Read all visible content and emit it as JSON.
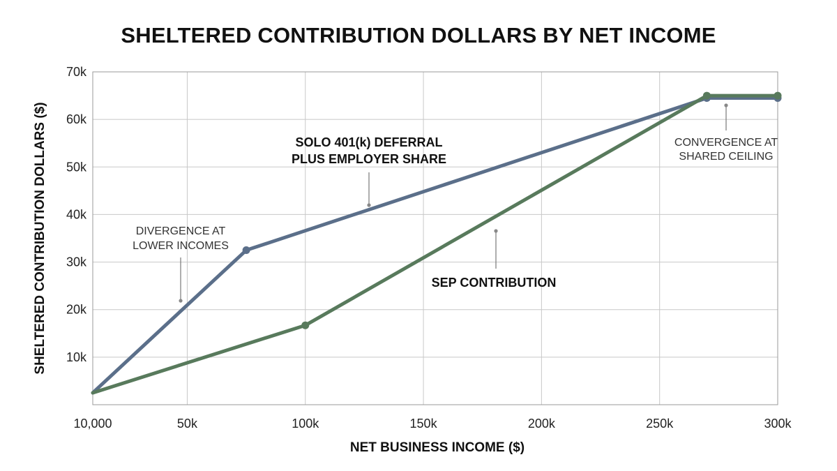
{
  "chart_data": {
    "type": "line",
    "title": "SHELTERED CONTRIBUTION DOLLARS BY NET INCOME",
    "xlabel": "NET BUSINESS INCOME ($)",
    "ylabel": "SHELTERED CONTRIBUTION DOLLARS ($)",
    "xlim": [
      10000,
      300000
    ],
    "ylim": [
      0,
      70000
    ],
    "grid": true,
    "x_ticks": [
      {
        "value": 10000,
        "label": "10,000"
      },
      {
        "value": 50000,
        "label": "50k"
      },
      {
        "value": 100000,
        "label": "100k"
      },
      {
        "value": 150000,
        "label": "150k"
      },
      {
        "value": 200000,
        "label": "200k"
      },
      {
        "value": 250000,
        "label": "250k"
      },
      {
        "value": 300000,
        "label": "300k"
      }
    ],
    "y_ticks": [
      {
        "value": 10000,
        "label": "10k"
      },
      {
        "value": 20000,
        "label": "20k"
      },
      {
        "value": 30000,
        "label": "30k"
      },
      {
        "value": 40000,
        "label": "40k"
      },
      {
        "value": 50000,
        "label": "50k"
      },
      {
        "value": 60000,
        "label": "60k"
      },
      {
        "value": 70000,
        "label": "70k"
      }
    ],
    "series": [
      {
        "key": "solo401k",
        "color": "#5b6f8a",
        "points": [
          [
            10000,
            2500
          ],
          [
            75000,
            32500
          ],
          [
            270000,
            64500
          ],
          [
            300000,
            64500
          ]
        ],
        "marker_points": [
          [
            75000,
            32500
          ],
          [
            270000,
            64500
          ],
          [
            300000,
            64500
          ]
        ]
      },
      {
        "key": "sep",
        "color": "#587a5c",
        "points": [
          [
            10000,
            2500
          ],
          [
            100000,
            16700
          ],
          [
            270000,
            65000
          ],
          [
            300000,
            65000
          ]
        ],
        "marker_points": [
          [
            100000,
            16700
          ],
          [
            270000,
            65000
          ],
          [
            300000,
            65000
          ]
        ]
      }
    ],
    "annotations": [
      {
        "key": "solo",
        "lines": [
          "SOLO 401(k) DEFERRAL",
          "PLUS EMPLOYER SHARE"
        ],
        "bold": true
      },
      {
        "key": "sep",
        "lines": [
          "SEP CONTRIBUTION"
        ],
        "bold": true
      },
      {
        "key": "divergence",
        "lines": [
          "DIVERGENCE AT",
          "LOWER INCOMES"
        ],
        "bold": false
      },
      {
        "key": "convergence",
        "lines": [
          "CONVERGENCE AT",
          "SHARED CEILING"
        ],
        "bold": false
      }
    ]
  }
}
